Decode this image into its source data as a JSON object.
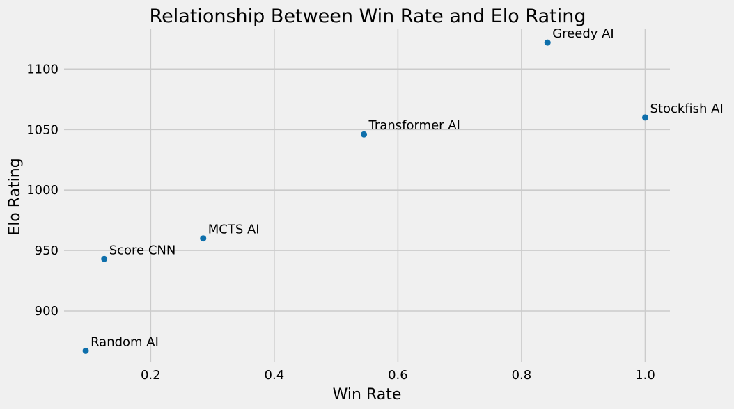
{
  "chart_data": {
    "type": "scatter",
    "title": "Relationship Between Win Rate and Elo Rating",
    "xlabel": "Win Rate",
    "ylabel": "Elo Rating",
    "xlim": [
      0.06,
      1.04
    ],
    "ylim": [
      858,
      1133
    ],
    "xticks": [
      0.2,
      0.4,
      0.6,
      0.8,
      1.0
    ],
    "xtick_labels": [
      "0.2",
      "0.4",
      "0.6",
      "0.8",
      "1.0"
    ],
    "yticks": [
      900,
      950,
      1000,
      1050,
      1100
    ],
    "ytick_labels": [
      "900",
      "950",
      "1000",
      "1050",
      "1100"
    ],
    "grid": true,
    "marker_color": "#0e6fab",
    "background": "#f0f0f0",
    "points": [
      {
        "label": "Random AI",
        "x": 0.095,
        "y": 867
      },
      {
        "label": "Score CNN",
        "x": 0.125,
        "y": 943
      },
      {
        "label": "MCTS AI",
        "x": 0.285,
        "y": 960
      },
      {
        "label": "Transformer AI",
        "x": 0.545,
        "y": 1046
      },
      {
        "label": "Greedy AI",
        "x": 0.842,
        "y": 1122
      },
      {
        "label": "Stockfish AI",
        "x": 1.0,
        "y": 1060
      }
    ]
  }
}
